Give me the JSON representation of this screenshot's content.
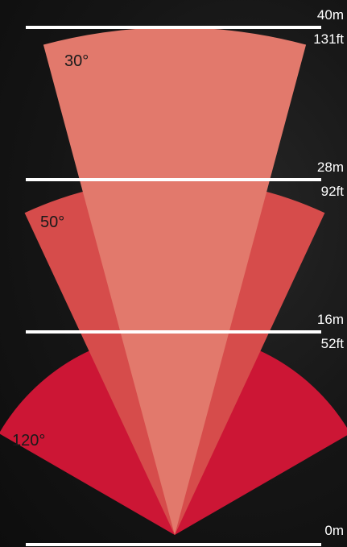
{
  "diagram": {
    "colors": {
      "background": "#151515",
      "line": "#ffffff",
      "text": "#ffffff",
      "angle_text": "#1a1a1a",
      "beam_120": "#cc1635",
      "beam_50": "#d64c4b",
      "beam_30": "#e2796c"
    },
    "beams": [
      {
        "angle": 120,
        "label": "120°",
        "range_m": 16,
        "color": "#cc1635"
      },
      {
        "angle": 50,
        "label": "50°",
        "range_m": 28,
        "color": "#d64c4b"
      },
      {
        "angle": 30,
        "label": "30°",
        "range_m": 40,
        "color": "#e2796c"
      }
    ],
    "levels": [
      {
        "meters": 40,
        "meters_label": "40m",
        "feet_label": "131ft"
      },
      {
        "meters": 28,
        "meters_label": "28m",
        "feet_label": "92ft"
      },
      {
        "meters": 16,
        "meters_label": "16m",
        "feet_label": "52ft"
      },
      {
        "meters": 0,
        "meters_label": "0m",
        "feet_label": ""
      }
    ]
  }
}
